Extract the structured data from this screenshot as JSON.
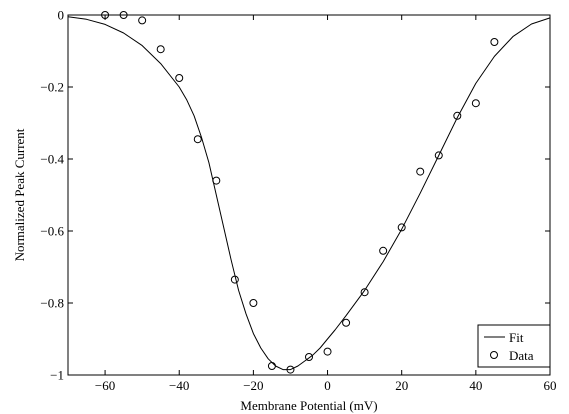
{
  "chart_data": {
    "type": "line",
    "xlabel": "Membrane Potential (mV)",
    "ylabel": "Normalized Peak Current",
    "xlim": [
      -70,
      60
    ],
    "ylim": [
      -1,
      0
    ],
    "xticks": [
      -60,
      -40,
      -20,
      0,
      20,
      40,
      60
    ],
    "yticks": [
      0,
      -0.2,
      -0.4,
      -0.6,
      -0.8,
      -1
    ],
    "xtick_labels": [
      "−60",
      "−40",
      "−20",
      "0",
      "20",
      "40",
      "60"
    ],
    "ytick_labels": [
      "0",
      "−0.2",
      "−0.4",
      "−0.6",
      "−0.8",
      "−1"
    ],
    "grid": false,
    "legend_position": "bottom-right",
    "series": [
      {
        "name": "Fit",
        "style": "solid-line",
        "color": "#000000",
        "x": [
          -70,
          -65,
          -60,
          -55,
          -50,
          -45,
          -40,
          -38,
          -36,
          -34,
          -32,
          -30,
          -28,
          -26,
          -24,
          -22,
          -20,
          -18,
          -16,
          -14,
          -12,
          -10,
          -8,
          -6,
          -4,
          -2,
          0,
          2,
          5,
          10,
          15,
          20,
          25,
          30,
          35,
          40,
          45,
          50,
          55,
          60
        ],
        "y": [
          -0.005,
          -0.012,
          -0.026,
          -0.05,
          -0.085,
          -0.135,
          -0.2,
          -0.235,
          -0.28,
          -0.34,
          -0.41,
          -0.5,
          -0.59,
          -0.68,
          -0.765,
          -0.83,
          -0.885,
          -0.925,
          -0.955,
          -0.975,
          -0.985,
          -0.985,
          -0.975,
          -0.96,
          -0.945,
          -0.925,
          -0.9,
          -0.875,
          -0.835,
          -0.765,
          -0.685,
          -0.595,
          -0.495,
          -0.39,
          -0.285,
          -0.19,
          -0.115,
          -0.06,
          -0.025,
          -0.008
        ]
      },
      {
        "name": "Data",
        "style": "open-circle-markers",
        "color": "#000000",
        "x": [
          -60,
          -55,
          -50,
          -45,
          -40,
          -35,
          -30,
          -25,
          -20,
          -15,
          -10,
          -5,
          0,
          5,
          10,
          15,
          20,
          25,
          30,
          35,
          40,
          45
        ],
        "y": [
          0.0,
          0.0,
          -0.015,
          -0.095,
          -0.175,
          -0.345,
          -0.46,
          -0.735,
          -0.8,
          -0.975,
          -0.985,
          -0.95,
          -0.935,
          -0.855,
          -0.77,
          -0.655,
          -0.59,
          -0.435,
          -0.39,
          -0.28,
          -0.245,
          -0.075
        ]
      }
    ]
  }
}
